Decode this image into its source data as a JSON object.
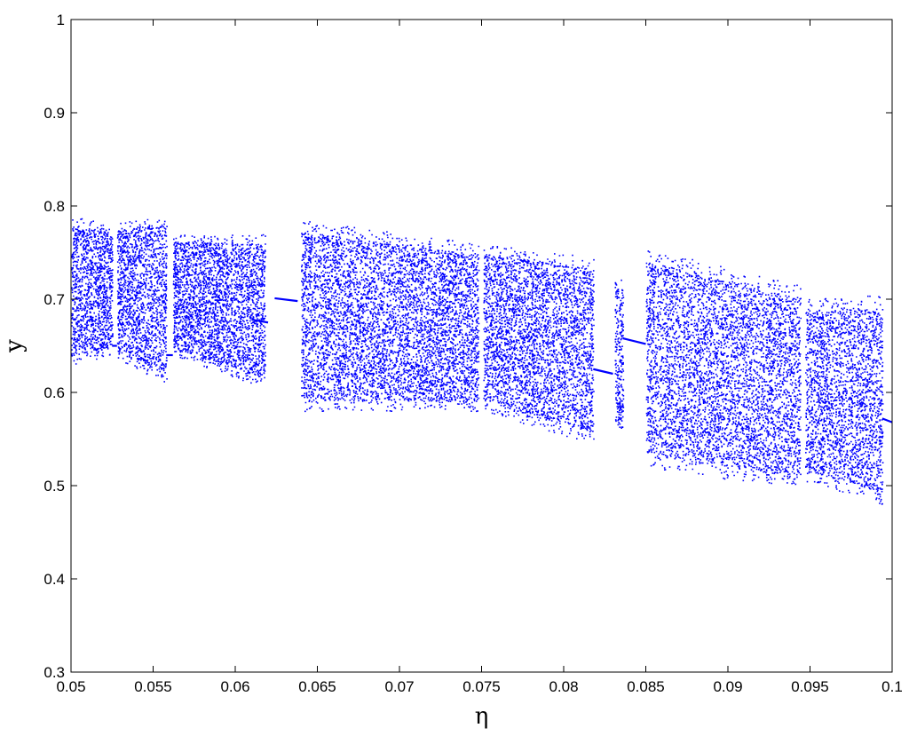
{
  "chart_data": {
    "type": "scatter",
    "title": "",
    "xlabel": "η",
    "ylabel": "y",
    "xlim": [
      0.05,
      0.1
    ],
    "ylim": [
      0.3,
      1.0
    ],
    "grid": false,
    "legend": "none",
    "marker_color": "#0000ff",
    "x_ticks": [
      "0.05",
      "0.055",
      "0.06",
      "0.065",
      "0.07",
      "0.075",
      "0.08",
      "0.085",
      "0.09",
      "0.095",
      "0.1"
    ],
    "y_ticks": [
      "0.3",
      "0.4",
      "0.5",
      "0.6",
      "0.7",
      "0.8",
      "0.9",
      "1"
    ],
    "chaotic_bands": [
      {
        "x": [
          0.05,
          0.0525
        ],
        "y_top": [
          0.79,
          0.78
        ],
        "y_bottom": [
          0.63,
          0.64
        ]
      },
      {
        "x": [
          0.0528,
          0.0558
        ],
        "y_top": [
          0.785,
          0.79
        ],
        "y_bottom": [
          0.635,
          0.61
        ]
      },
      {
        "x": [
          0.0562,
          0.0618
        ],
        "y_top": [
          0.77,
          0.77
        ],
        "y_bottom": [
          0.64,
          0.605
        ]
      },
      {
        "x": [
          0.064,
          0.0748
        ],
        "y_top": [
          0.785,
          0.76
        ],
        "y_bottom": [
          0.58,
          0.58
        ]
      },
      {
        "x": [
          0.0751,
          0.0818
        ],
        "y_top": [
          0.76,
          0.745
        ],
        "y_bottom": [
          0.58,
          0.545
        ]
      },
      {
        "x": [
          0.0831,
          0.0836
        ],
        "y_top": [
          0.73,
          0.72
        ],
        "y_bottom": [
          0.56,
          0.56
        ]
      },
      {
        "x": [
          0.085,
          0.0944
        ],
        "y_top": [
          0.755,
          0.715
        ],
        "y_bottom": [
          0.52,
          0.495
        ]
      },
      {
        "x": [
          0.0947,
          0.0994
        ],
        "y_top": [
          0.7,
          0.705
        ],
        "y_bottom": [
          0.505,
          0.48
        ]
      }
    ],
    "periodic_windows": [
      {
        "x": [
          0.0525,
          0.0528
        ],
        "y": [
          0.65,
          0.65
        ]
      },
      {
        "x": [
          0.0558,
          0.0562
        ],
        "y": [
          0.64,
          0.64
        ]
      },
      {
        "x": [
          0.061,
          0.062
        ],
        "y": [
          0.678,
          0.675
        ]
      },
      {
        "x": [
          0.0624,
          0.0638
        ],
        "y": [
          0.701,
          0.698
        ]
      },
      {
        "x": [
          0.0818,
          0.083
        ],
        "y": [
          0.625,
          0.62
        ]
      },
      {
        "x": [
          0.0836,
          0.085
        ],
        "y": [
          0.658,
          0.652
        ]
      },
      {
        "x": [
          0.0994,
          0.1
        ],
        "y": [
          0.572,
          0.568
        ]
      }
    ]
  }
}
